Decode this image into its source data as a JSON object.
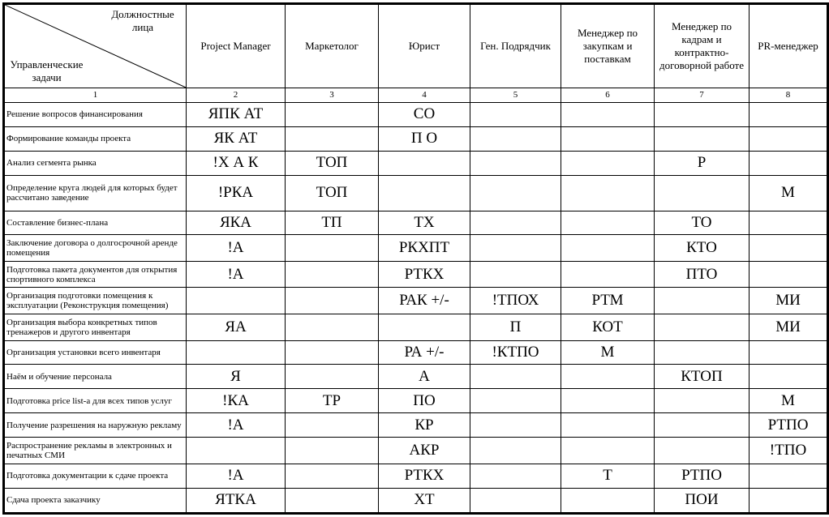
{
  "header": {
    "corner": {
      "top": "Должностные лица",
      "left": "Управленческие задачи"
    },
    "columns": [
      "Project Manager",
      "Маркетолог",
      "Юрист",
      "Ген. Подрядчик",
      "Менеджер по закупкам и поставкам",
      "Менеджер по кадрам и контрактно-договорной работе",
      "PR-менеджер"
    ],
    "numbers": [
      1,
      2,
      3,
      4,
      5,
      6,
      7,
      8
    ]
  },
  "table": {
    "rows": [
      [
        "Решение вопросов финансирования",
        "ЯПК АТ",
        null,
        "СО",
        null,
        null,
        null,
        null
      ],
      [
        "Формирование команды проекта",
        "ЯК АТ",
        null,
        "П О",
        null,
        null,
        null,
        null
      ],
      [
        "Анализ сегмента рынка",
        "!Х А К",
        "ТОП",
        null,
        null,
        null,
        "Р",
        null
      ],
      [
        "Определение круга людей для которых будет рассчитано заведение",
        "!РКА",
        "ТОП",
        null,
        null,
        null,
        null,
        "М"
      ],
      [
        "Составление бизнес-плана",
        "ЯКА",
        "ТП",
        "ТХ",
        null,
        null,
        "ТО",
        null
      ],
      [
        "Заключение договора о долгосрочной аренде помещения",
        "!А",
        null,
        "РКХПТ",
        null,
        null,
        "КТО",
        null
      ],
      [
        "Подготовка пакета документов для открытия спортивного комплекса",
        "!А",
        null,
        "РТКХ",
        null,
        null,
        "ПТО",
        null
      ],
      [
        "Организация подготовки помещения к эксплуатации (Реконструкция помещения)",
        null,
        null,
        "РАК +/-",
        "!ТПОХ",
        "РТМ",
        null,
        "МИ"
      ],
      [
        "Организация выбора конкретных типов тренажеров и другого инвентаря",
        "ЯА",
        null,
        null,
        "П",
        "КОТ",
        null,
        "МИ"
      ],
      [
        "Организация установки всего инвентаря",
        null,
        null,
        "РА +/-",
        "!КТПО",
        "М",
        null,
        null
      ],
      [
        "Наём и обучение персонала",
        "Я",
        null,
        "А",
        null,
        null,
        "КТОП",
        null
      ],
      [
        "Подготовка price list-а для всех типов услуг",
        "!КА",
        "ТР",
        "ПО",
        null,
        null,
        null,
        "М"
      ],
      [
        "Получение разрешения на наружную рекламу",
        "!А",
        null,
        "КР",
        null,
        null,
        null,
        "РТПО"
      ],
      [
        "Распространение рекламы в электронных и печатных СМИ",
        null,
        null,
        "АКР",
        null,
        null,
        null,
        "!ТПО"
      ],
      [
        "Подготовка документации к сдаче проекта",
        "!А",
        null,
        "РТКХ",
        null,
        "Т",
        "РТПО",
        null
      ],
      [
        "Сдача проекта заказчику",
        "ЯТКА",
        null,
        "ХТ",
        null,
        null,
        "ПОИ",
        null
      ]
    ]
  }
}
